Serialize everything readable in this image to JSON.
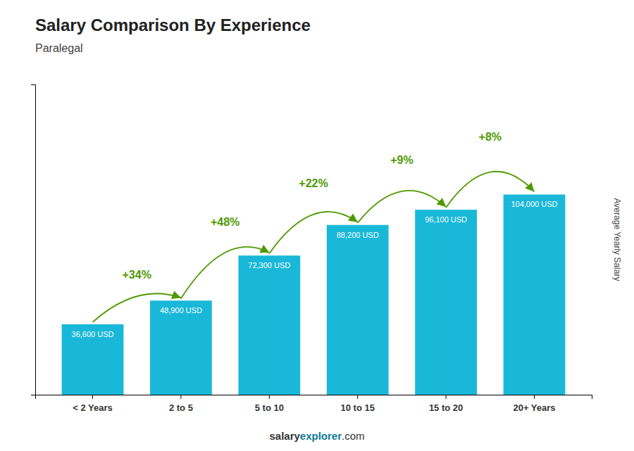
{
  "chart_data": {
    "type": "bar",
    "title": "Salary Comparison By Experience",
    "subtitle": "Paralegal",
    "ylabel": "Average Yearly Salary",
    "categories": [
      "< 2 Years",
      "2 to 5",
      "5 to 10",
      "10 to 15",
      "15 to 20",
      "20+ Years"
    ],
    "values": [
      36600,
      48900,
      72300,
      88200,
      96100,
      104000
    ],
    "value_labels": [
      "36,600 USD",
      "48,900 USD",
      "72,300 USD",
      "88,200 USD",
      "96,100 USD",
      "104,000 USD"
    ],
    "data_labels": true,
    "annotations": [
      "+34%",
      "+48%",
      "+22%",
      "+9%",
      "+8%"
    ],
    "footer": [
      "salary",
      "explorer",
      ".com"
    ],
    "color": "#1ab8d8",
    "ylim": [
      0,
      161200
    ],
    "yticks": [],
    "tick_labels": "x",
    "grid": false
  }
}
